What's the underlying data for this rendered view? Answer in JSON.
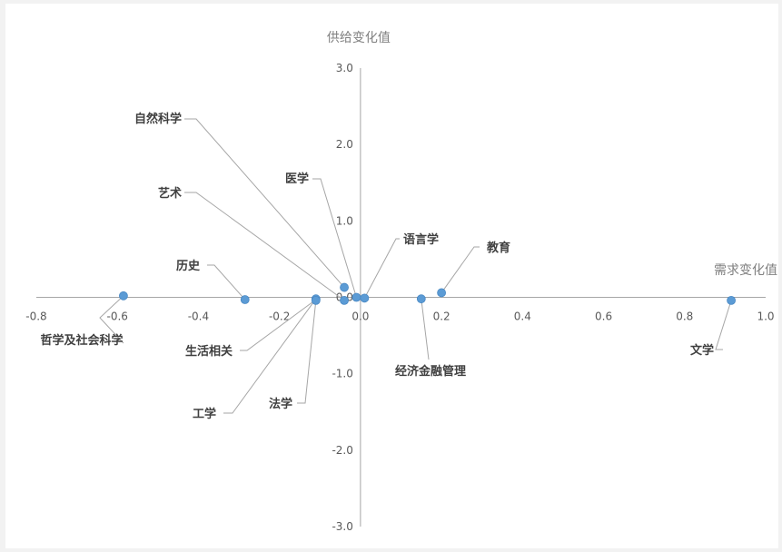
{
  "chart_data": {
    "type": "scatter",
    "xlabel": "需求变化值",
    "ylabel": "供给变化值",
    "xlim": [
      -0.8,
      1.0
    ],
    "ylim": [
      -3.0,
      3.0
    ],
    "x_ticks": [
      "-0.8",
      "-0.6",
      "-0.4",
      "-0.2",
      "0.0",
      "0.2",
      "0.4",
      "0.6",
      "0.8",
      "1.0"
    ],
    "y_ticks": [
      "3.0",
      "2.0",
      "1.0",
      "0.0",
      "-1.0",
      "-2.0",
      "-3.0"
    ],
    "grid": false,
    "series": [
      {
        "color": "#5b9bd5",
        "points": [
          {
            "label": "哲学及社会科学",
            "x": -0.585,
            "y": 0.02
          },
          {
            "label": "历史",
            "x": -0.285,
            "y": -0.03
          },
          {
            "label": "生活相关",
            "x": -0.11,
            "y": -0.03
          },
          {
            "label": "工学",
            "x": -0.11,
            "y": -0.02
          },
          {
            "label": "法学",
            "x": -0.11,
            "y": -0.04
          },
          {
            "label": "自然科学",
            "x": -0.04,
            "y": 0.13
          },
          {
            "label": "艺术",
            "x": -0.04,
            "y": -0.04
          },
          {
            "label": "医学",
            "x": -0.01,
            "y": 0.0
          },
          {
            "label": "语言学",
            "x": 0.01,
            "y": -0.01
          },
          {
            "label": "经济金融管理",
            "x": 0.15,
            "y": -0.02
          },
          {
            "label": "教育",
            "x": 0.2,
            "y": 0.06
          },
          {
            "label": "文学",
            "x": 0.915,
            "y": -0.04
          }
        ]
      }
    ]
  }
}
